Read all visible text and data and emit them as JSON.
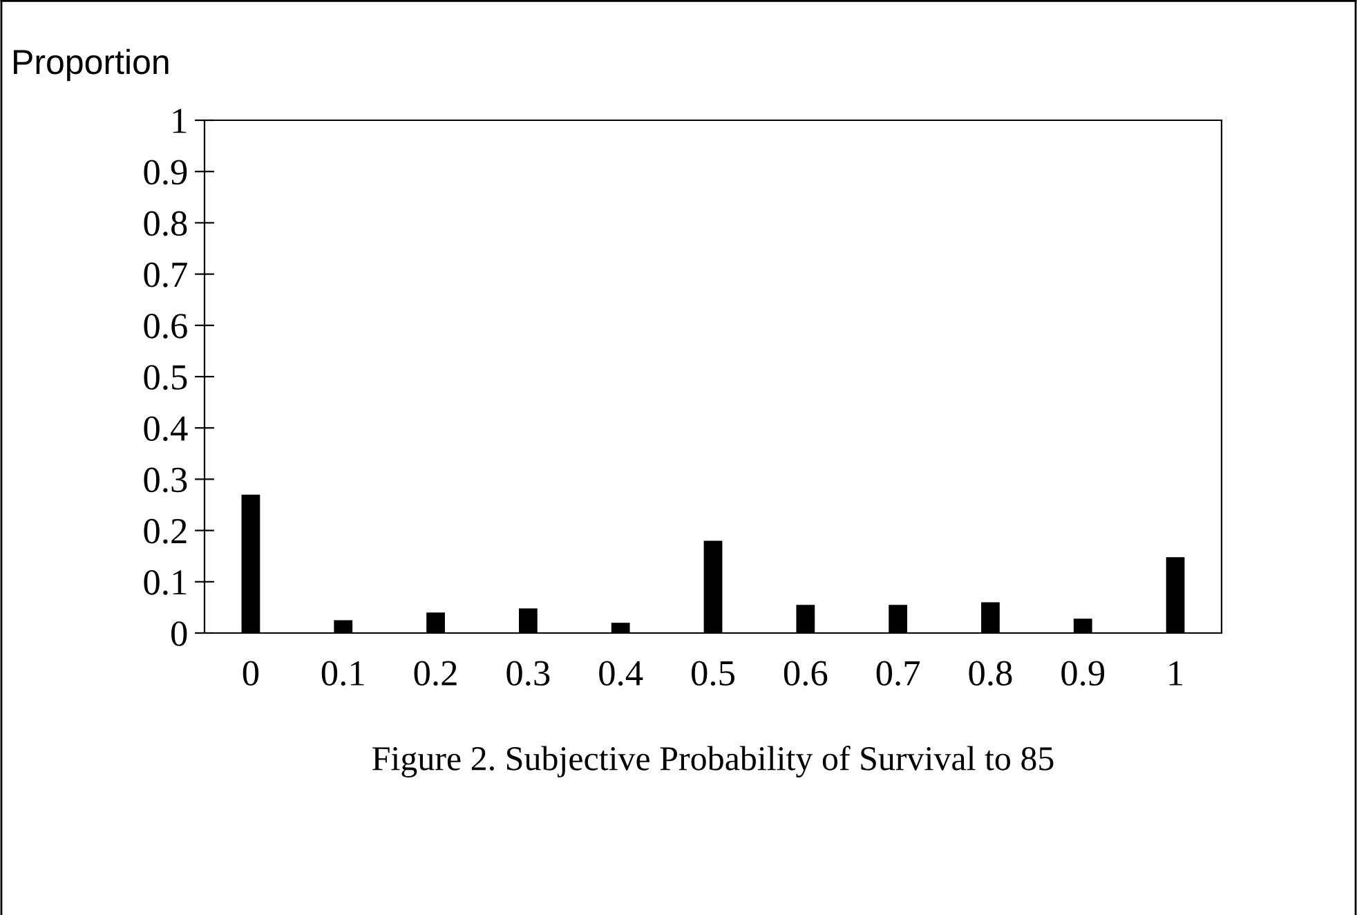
{
  "chart_data": {
    "type": "bar",
    "title": "Figure 2. Subjective Probability of Survival to 85",
    "ylabel": "Proportion",
    "categories": [
      "0",
      "0.1",
      "0.2",
      "0.3",
      "0.4",
      "0.5",
      "0.6",
      "0.7",
      "0.8",
      "0.9",
      "1"
    ],
    "values": [
      0.27,
      0.025,
      0.04,
      0.048,
      0.02,
      0.18,
      0.055,
      0.055,
      0.06,
      0.028,
      0.148
    ],
    "color": "#000000",
    "ylim": [
      0,
      1
    ],
    "yticks": [
      0,
      0.1,
      0.2,
      0.3,
      0.4,
      0.5,
      0.6,
      0.7,
      0.8,
      0.9,
      1
    ],
    "grid": false
  }
}
